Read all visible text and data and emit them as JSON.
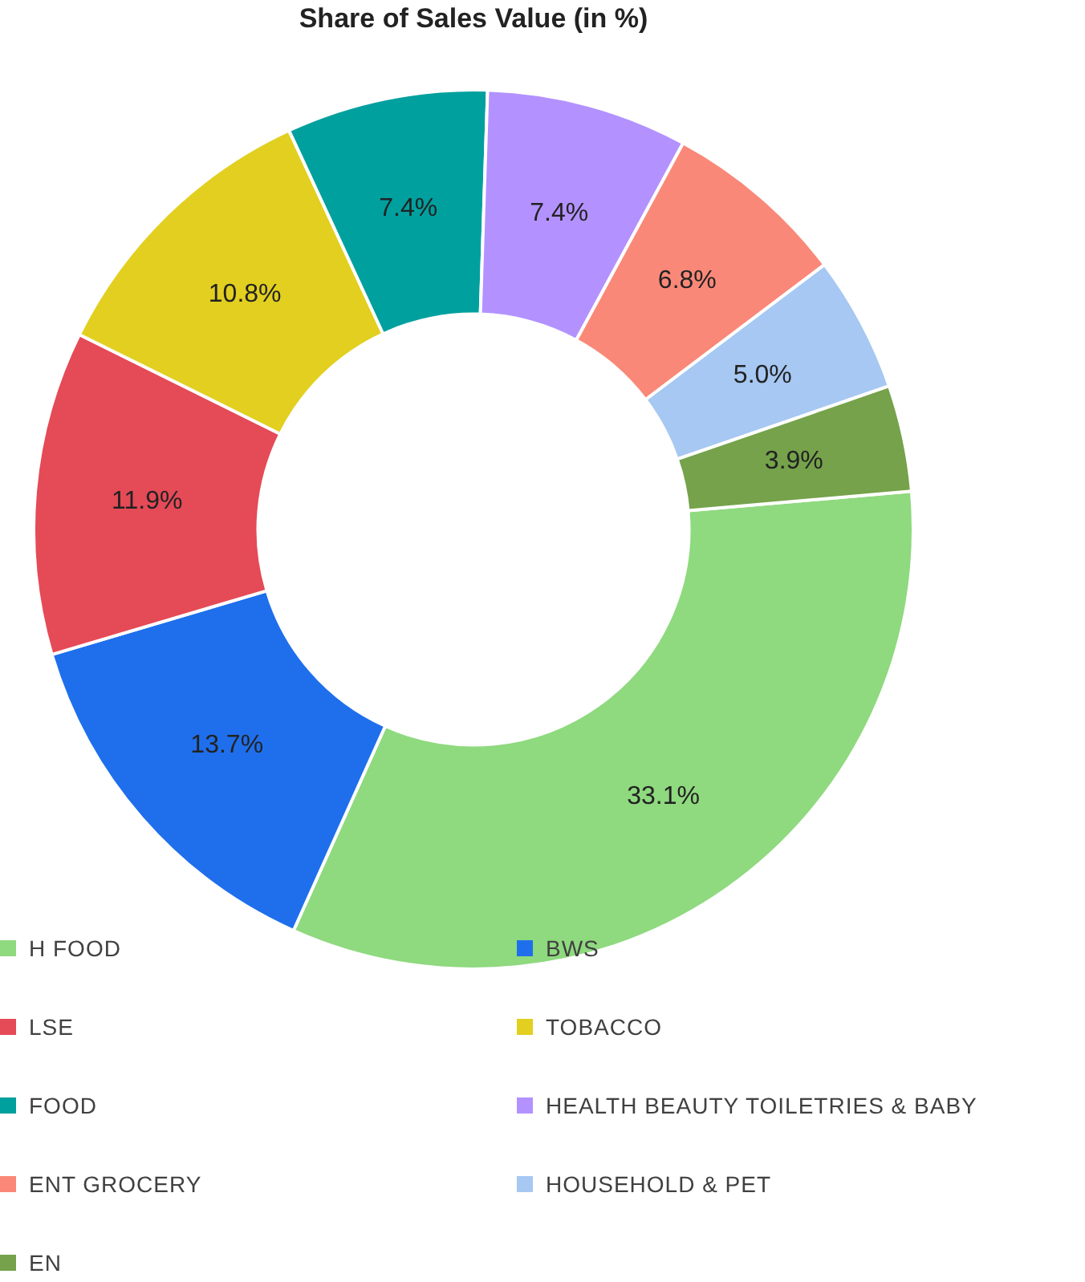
{
  "chart_data": {
    "type": "donut",
    "title": "Share of Sales Value (in %)",
    "categories": [
      "H FOOD",
      "BWS",
      "LSE",
      "TOBACCO",
      "FOOD",
      "HEALTH BEAUTY TOILETRIES & BABY",
      "ENT GROCERY",
      "HOUSEHOLD & PET",
      "EN"
    ],
    "values": [
      33.1,
      13.7,
      11.9,
      10.8,
      7.4,
      7.4,
      6.8,
      5.0,
      3.9
    ],
    "colors": [
      "#8fd97f",
      "#1f6fec",
      "#e54a57",
      "#e2cf1f",
      "#00a09e",
      "#b392ff",
      "#fa8878",
      "#a6c8f2",
      "#75a24a"
    ],
    "value_labels": [
      "33.1%",
      "13.7%",
      "11.9%",
      "10.8%",
      "7.4%",
      "7.4%",
      "6.8%",
      "5.0%",
      "3.9%"
    ],
    "legend": "bottom"
  }
}
